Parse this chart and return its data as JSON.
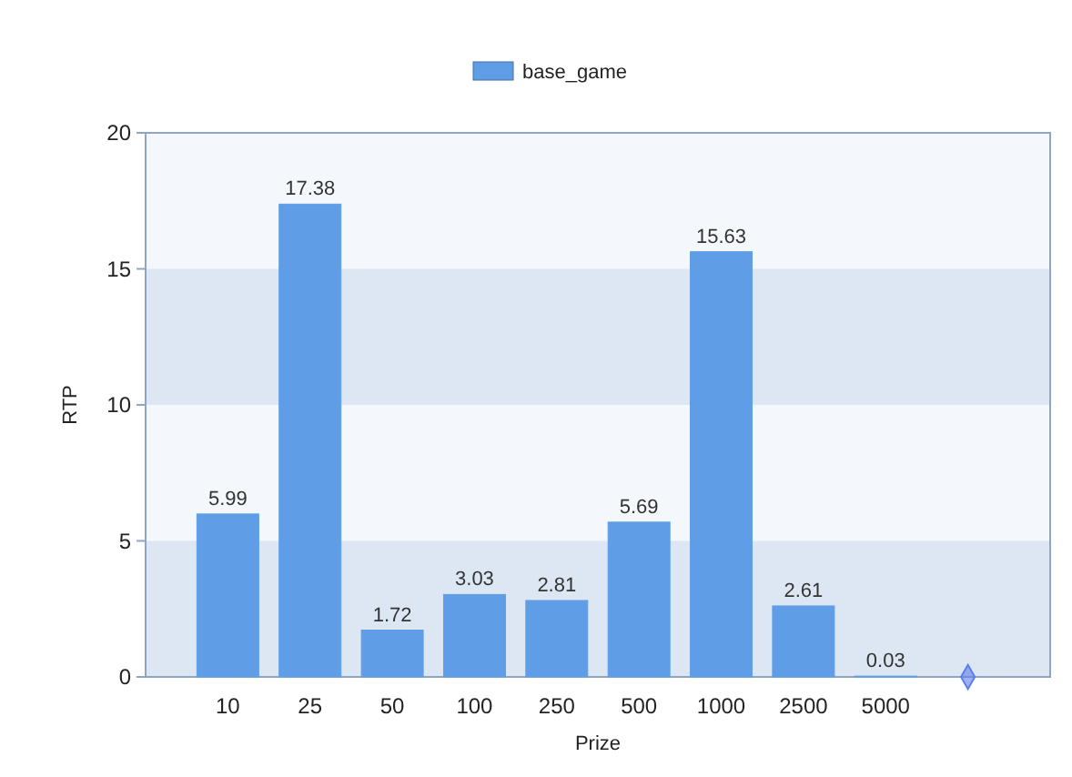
{
  "chart_data": {
    "type": "bar",
    "xlabel": "Prize",
    "ylabel": "RTP",
    "categories": [
      "10",
      "25",
      "50",
      "100",
      "250",
      "500",
      "1000",
      "2500",
      "5000",
      null
    ],
    "series": [
      {
        "name": "base_game",
        "color": "#5f9ee6",
        "values": [
          5.99,
          17.38,
          1.72,
          3.03,
          2.81,
          5.69,
          15.63,
          2.61,
          0.03,
          null
        ],
        "value_labels": [
          "5.99",
          "17.38",
          "1.72",
          "3.03",
          "2.81",
          "5.69",
          "15.63",
          "2.61",
          "0.03",
          null
        ]
      },
      {
        "type": "scatter",
        "color": "#5b7fe8",
        "marker": "diamond",
        "values": [
          null,
          null,
          null,
          null,
          null,
          null,
          null,
          null,
          null,
          0
        ]
      }
    ],
    "ylim": [
      0,
      20
    ],
    "yticks": [
      0,
      5,
      10,
      15,
      20
    ],
    "legend": "top",
    "grid": false,
    "bands": [
      {
        "axis": "y",
        "from": 0,
        "to": 5,
        "color": "#dde7f3"
      },
      {
        "axis": "y",
        "from": 10,
        "to": 15,
        "color": "#dde7f3"
      }
    ]
  }
}
